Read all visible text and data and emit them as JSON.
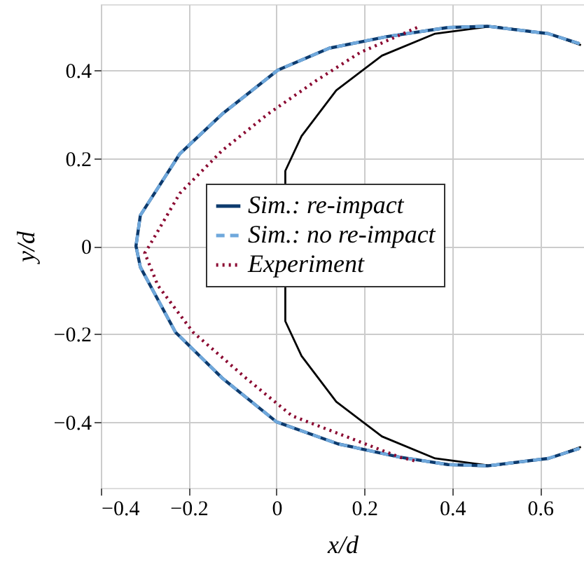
{
  "chart_data": {
    "type": "line",
    "xlabel": "x/d",
    "ylabel": "y/d",
    "xlim": [
      -0.4,
      0.7
    ],
    "ylim": [
      -0.55,
      0.55
    ],
    "xticks": [
      -0.4,
      -0.2,
      0,
      0.2,
      0.4,
      0.6
    ],
    "yticks": [
      -0.4,
      -0.2,
      0,
      0.2,
      0.4
    ],
    "grid": true,
    "legend": "right",
    "marker": "none",
    "series": [
      {
        "color": "#000000",
        "line_style": "solid",
        "x": [
          0.693,
          0.619,
          0.49,
          0.361,
          0.24,
          0.136,
          0.057,
          0.02,
          0.02,
          0.057,
          0.136,
          0.24,
          0.361,
          0.49,
          0.619,
          0.693
        ],
        "values": [
          0.457,
          0.483,
          0.5,
          0.483,
          0.433,
          0.354,
          0.25,
          0.171,
          -0.171,
          -0.25,
          -0.354,
          -0.433,
          -0.483,
          -0.5,
          -0.483,
          -0.457
        ]
      },
      {
        "name": "Sim.: re-impact",
        "color": "#0d3b6e",
        "line_style": "solid",
        "x": [
          0.69,
          0.619,
          0.48,
          0.39,
          0.25,
          0.12,
          0.003,
          -0.124,
          -0.22,
          -0.31,
          -0.32,
          -0.31,
          -0.23,
          -0.124,
          0,
          0.14,
          0.28,
          0.39,
          0.48,
          0.619,
          0.69
        ],
        "values": [
          0.46,
          0.483,
          0.5,
          0.497,
          0.476,
          0.45,
          0.4,
          0.3,
          0.21,
          0.07,
          0,
          -0.048,
          -0.196,
          -0.3,
          -0.4,
          -0.45,
          -0.48,
          -0.497,
          -0.5,
          -0.483,
          -0.46
        ]
      },
      {
        "name": "Sim.: no re-impact",
        "color": "#6fa8dc",
        "line_style": "dashed",
        "x": [
          0.69,
          0.619,
          0.48,
          0.39,
          0.25,
          0.12,
          0.003,
          -0.124,
          -0.22,
          -0.31,
          -0.32,
          -0.31,
          -0.23,
          -0.124,
          0,
          0.14,
          0.28,
          0.39,
          0.48,
          0.619,
          0.69
        ],
        "values": [
          0.46,
          0.483,
          0.5,
          0.497,
          0.476,
          0.45,
          0.4,
          0.3,
          0.21,
          0.07,
          0,
          -0.048,
          -0.196,
          -0.3,
          -0.4,
          -0.45,
          -0.48,
          -0.497,
          -0.5,
          -0.483,
          -0.46
        ]
      },
      {
        "name": "Experiment",
        "color": "#8b0a32",
        "line_style": "dotted",
        "x": [
          0.32,
          0.19,
          0.09,
          -0.02,
          -0.124,
          -0.22,
          -0.29,
          -0.3,
          -0.27,
          -0.19,
          -0.07,
          0.035,
          0.15,
          0.28,
          0.32
        ],
        "values": [
          0.497,
          0.44,
          0.376,
          0.3,
          0.217,
          0.12,
          0,
          -0.016,
          -0.09,
          -0.196,
          -0.3,
          -0.386,
          -0.43,
          -0.48,
          -0.49
        ]
      }
    ]
  }
}
